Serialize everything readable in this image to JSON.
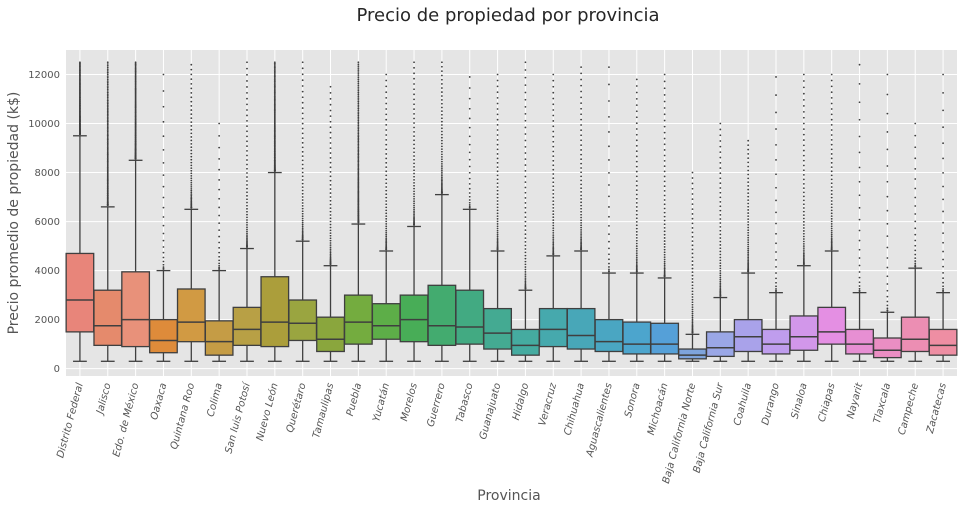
{
  "chart_data": {
    "type": "boxplot",
    "title": "Precio de propiedad por provincia",
    "xlabel": "Provincia",
    "ylabel": "Precio promedio de propiedad (k$)",
    "ylim": [
      -300,
      13000
    ],
    "yticks": [
      0,
      2000,
      4000,
      6000,
      8000,
      10000,
      12000
    ],
    "grid": true,
    "categories": [
      "Distrito Federal",
      "Jalisco",
      "Edo. de México",
      "Oaxaca",
      "Quintana Roo",
      "Colima",
      "San luis Potosí",
      "Nuevo León",
      "Querétaro",
      "Tamaulipas",
      "Puebla",
      "Yucatán",
      "Morelos",
      "Guerrero",
      "Tabasco",
      "Guanajuato",
      "Hidalgo",
      "Veracruz",
      "Chihuahua",
      "Aguascalientes",
      "Sonora",
      "Michoacán",
      "Baja California Norte",
      "Baja California Sur",
      "Coahuila",
      "Durango",
      "Sinaloa",
      "Chiapas",
      "Nayarit",
      "Tlaxcala",
      "Campeche",
      "Zacatecas"
    ],
    "boxes": [
      {
        "q1": 1500,
        "median": 2800,
        "q3": 4700,
        "wlo": 300,
        "whi": 9500,
        "ohi": 12500,
        "dense": "high",
        "color": "#e8857a"
      },
      {
        "q1": 950,
        "median": 1750,
        "q3": 3200,
        "wlo": 300,
        "whi": 6600,
        "ohi": 12500,
        "dense": "high",
        "color": "#e58a6c"
      },
      {
        "q1": 900,
        "median": 2000,
        "q3": 3950,
        "wlo": 300,
        "whi": 8500,
        "ohi": 12500,
        "dense": "high",
        "color": "#e8917a"
      },
      {
        "q1": 650,
        "median": 1150,
        "q3": 2000,
        "wlo": 300,
        "whi": 4000,
        "ohi": 12000,
        "dense": "low",
        "color": "#de8b3a"
      },
      {
        "q1": 1100,
        "median": 1900,
        "q3": 3250,
        "wlo": 300,
        "whi": 6500,
        "ohi": 12400,
        "dense": "med",
        "color": "#d19a43"
      },
      {
        "q1": 550,
        "median": 1100,
        "q3": 1950,
        "wlo": 300,
        "whi": 4000,
        "ohi": 10000,
        "dense": "low",
        "color": "#c59c45"
      },
      {
        "q1": 950,
        "median": 1600,
        "q3": 2500,
        "wlo": 300,
        "whi": 4900,
        "ohi": 12500,
        "dense": "med",
        "color": "#b8a045"
      },
      {
        "q1": 900,
        "median": 1900,
        "q3": 3750,
        "wlo": 300,
        "whi": 8000,
        "ohi": 12500,
        "dense": "high",
        "color": "#ab9e3b"
      },
      {
        "q1": 1150,
        "median": 1850,
        "q3": 2800,
        "wlo": 300,
        "whi": 5200,
        "ohi": 12500,
        "dense": "med",
        "color": "#9aa540"
      },
      {
        "q1": 700,
        "median": 1200,
        "q3": 2100,
        "wlo": 300,
        "whi": 4200,
        "ohi": 11500,
        "dense": "med",
        "color": "#8aa63d"
      },
      {
        "q1": 1000,
        "median": 1900,
        "q3": 3000,
        "wlo": 300,
        "whi": 5900,
        "ohi": 12500,
        "dense": "high",
        "color": "#74ac3f"
      },
      {
        "q1": 1200,
        "median": 1750,
        "q3": 2650,
        "wlo": 300,
        "whi": 4800,
        "ohi": 12000,
        "dense": "med",
        "color": "#5dae48"
      },
      {
        "q1": 1100,
        "median": 2000,
        "q3": 3000,
        "wlo": 300,
        "whi": 5800,
        "ohi": 12500,
        "dense": "med",
        "color": "#48ad57"
      },
      {
        "q1": 950,
        "median": 1750,
        "q3": 3400,
        "wlo": 300,
        "whi": 7100,
        "ohi": 12500,
        "dense": "med",
        "color": "#43ab6f"
      },
      {
        "q1": 1000,
        "median": 1700,
        "q3": 3200,
        "wlo": 300,
        "whi": 6500,
        "ohi": 11900,
        "dense": "low",
        "color": "#42aa82"
      },
      {
        "q1": 800,
        "median": 1450,
        "q3": 2450,
        "wlo": 300,
        "whi": 4800,
        "ohi": 12000,
        "dense": "med",
        "color": "#44aa92"
      },
      {
        "q1": 550,
        "median": 950,
        "q3": 1600,
        "wlo": 300,
        "whi": 3200,
        "ohi": 12500,
        "dense": "med",
        "color": "#45aba0"
      },
      {
        "q1": 900,
        "median": 1600,
        "q3": 2450,
        "wlo": 300,
        "whi": 4600,
        "ohi": 12000,
        "dense": "med",
        "color": "#46a9ad"
      },
      {
        "q1": 800,
        "median": 1350,
        "q3": 2450,
        "wlo": 300,
        "whi": 4800,
        "ohi": 12300,
        "dense": "med",
        "color": "#48a7b8"
      },
      {
        "q1": 700,
        "median": 1100,
        "q3": 2000,
        "wlo": 300,
        "whi": 3900,
        "ohi": 12300,
        "dense": "low",
        "color": "#4aa6c2"
      },
      {
        "q1": 600,
        "median": 1000,
        "q3": 1900,
        "wlo": 300,
        "whi": 3900,
        "ohi": 11800,
        "dense": "med",
        "color": "#4ca5cd"
      },
      {
        "q1": 600,
        "median": 1000,
        "q3": 1850,
        "wlo": 300,
        "whi": 3700,
        "ohi": 12000,
        "dense": "med",
        "color": "#55a0d8"
      },
      {
        "q1": 400,
        "median": 550,
        "q3": 800,
        "wlo": 300,
        "whi": 1400,
        "ohi": 8000,
        "dense": "med",
        "color": "#7ea4dc"
      },
      {
        "q1": 500,
        "median": 850,
        "q3": 1500,
        "wlo": 300,
        "whi": 2900,
        "ohi": 10000,
        "dense": "med",
        "color": "#9aa7e6"
      },
      {
        "q1": 700,
        "median": 1300,
        "q3": 2000,
        "wlo": 300,
        "whi": 3900,
        "ohi": 9300,
        "dense": "med",
        "color": "#a9a2ea"
      },
      {
        "q1": 600,
        "median": 1000,
        "q3": 1600,
        "wlo": 300,
        "whi": 3100,
        "ohi": 11900,
        "dense": "low",
        "color": "#bf9ded"
      },
      {
        "q1": 750,
        "median": 1300,
        "q3": 2150,
        "wlo": 300,
        "whi": 4200,
        "ohi": 12000,
        "dense": "med",
        "color": "#d297ea"
      },
      {
        "q1": 1000,
        "median": 1500,
        "q3": 2500,
        "wlo": 300,
        "whi": 4800,
        "ohi": 12000,
        "dense": "med",
        "color": "#e48fe3"
      },
      {
        "q1": 600,
        "median": 1000,
        "q3": 1600,
        "wlo": 300,
        "whi": 3100,
        "ohi": 12400,
        "dense": "low",
        "color": "#e78fd3"
      },
      {
        "q1": 450,
        "median": 750,
        "q3": 1250,
        "wlo": 300,
        "whi": 2300,
        "ohi": 12000,
        "dense": "low",
        "color": "#ea8ec3"
      },
      {
        "q1": 700,
        "median": 1200,
        "q3": 2100,
        "wlo": 300,
        "whi": 4100,
        "ohi": 10000,
        "dense": "low",
        "color": "#ec8eb3"
      },
      {
        "q1": 550,
        "median": 950,
        "q3": 1600,
        "wlo": 300,
        "whi": 3100,
        "ohi": 12000,
        "dense": "low",
        "color": "#ee8ea3"
      }
    ]
  }
}
